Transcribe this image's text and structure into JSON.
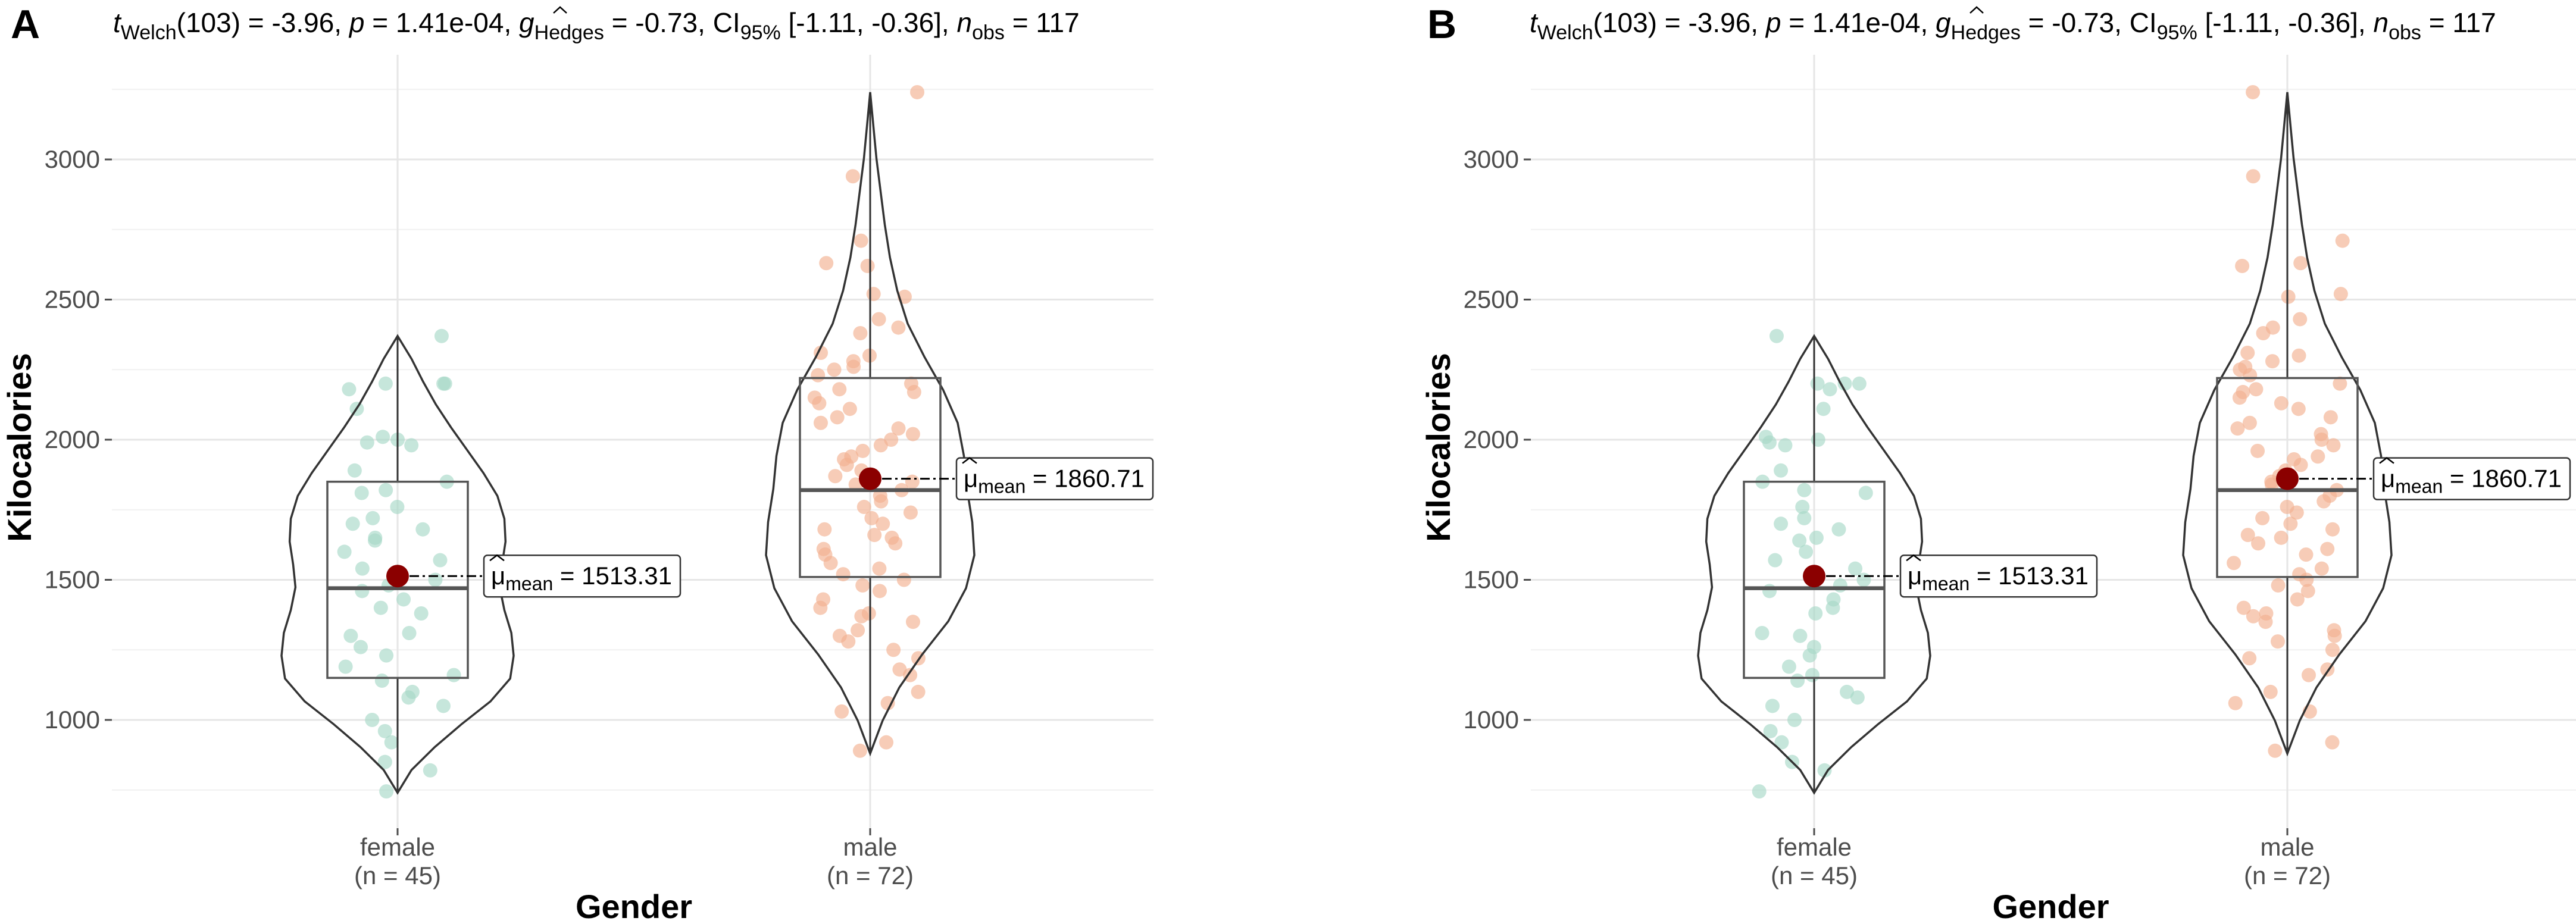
{
  "chart_data": [
    {
      "panel_label": "A",
      "type": "violin",
      "subtitle_stats": {
        "t_label": "t",
        "t_sub": "Welch",
        "df": "(103) = -3.96,",
        "p_label": "p",
        "p_value": "= 1.41e-04,",
        "g_label": "g",
        "g_sub": "Hedges",
        "g_value": "= -0.73,",
        "ci_label": "CI",
        "ci_sub": "95%",
        "ci_value": "[-1.11, -0.36],",
        "n_label": "n",
        "n_sub": "obs",
        "n_value": "= 117"
      },
      "xlabel": "Gender",
      "ylabel": "Kilocalories",
      "ylim": [
        600,
        3300
      ],
      "yticks": [
        1000,
        1500,
        2000,
        2500,
        3000
      ],
      "categories": [
        {
          "name": "female",
          "count_label": "(n = 45)",
          "color": "#a8d8c8",
          "violin": {
            "min": 740,
            "max": 2370
          },
          "box": {
            "q1": 1150,
            "median": 1470,
            "q3": 1850,
            "whisker_low": 740,
            "whisker_high": 2370
          },
          "mean": 1513.31,
          "mean_label_mu": "μ",
          "mean_label_sub": "mean",
          "mean_label_value": "= 1513.31",
          "points": [
            2370,
            2200,
            2180,
            2200,
            2200,
            2110,
            2010,
            2000,
            1980,
            1990,
            1890,
            1850,
            1820,
            1810,
            1760,
            1720,
            1700,
            1680,
            1650,
            1640,
            1600,
            1570,
            1540,
            1500,
            1480,
            1460,
            1430,
            1400,
            1380,
            1310,
            1300,
            1260,
            1230,
            1190,
            1160,
            1140,
            1100,
            1080,
            1050,
            1000,
            960,
            920,
            850,
            820,
            745
          ]
        },
        {
          "name": "male",
          "count_label": "(n = 72)",
          "color": "#f2b090",
          "violin": {
            "min": 880,
            "max": 3240
          },
          "box": {
            "q1": 1510,
            "median": 1820,
            "q3": 2220,
            "whisker_low": 880,
            "whisker_high": 3240
          },
          "mean": 1860.71,
          "mean_label_mu": "μ",
          "mean_label_sub": "mean",
          "mean_label_value": "= 1860.71",
          "points": [
            3240,
            2940,
            2710,
            2630,
            2620,
            2520,
            2510,
            2430,
            2400,
            2380,
            2310,
            2300,
            2280,
            2260,
            2250,
            2230,
            2200,
            2180,
            2170,
            2150,
            2130,
            2110,
            2080,
            2060,
            2040,
            2020,
            2000,
            1980,
            1960,
            1940,
            1930,
            1910,
            1890,
            1870,
            1850,
            1840,
            1820,
            1800,
            1780,
            1760,
            1740,
            1720,
            1700,
            1680,
            1660,
            1650,
            1630,
            1610,
            1590,
            1560,
            1540,
            1520,
            1500,
            1480,
            1460,
            1430,
            1400,
            1380,
            1370,
            1350,
            1320,
            1300,
            1280,
            1250,
            1220,
            1180,
            1160,
            1100,
            1060,
            1030,
            920,
            890
          ]
        }
      ]
    },
    {
      "panel_label": "B",
      "type": "violin",
      "subtitle_stats": {
        "t_label": "t",
        "t_sub": "Welch",
        "df": "(103) = -3.96,",
        "p_label": "p",
        "p_value": "= 1.41e-04,",
        "g_label": "g",
        "g_sub": "Hedges",
        "g_value": "= -0.73,",
        "ci_label": "CI",
        "ci_sub": "95%",
        "ci_value": "[-1.11, -0.36],",
        "n_label": "n",
        "n_sub": "obs",
        "n_value": "= 117"
      },
      "xlabel": "Gender",
      "ylabel": "Kilocalories",
      "ylim": [
        600,
        3300
      ],
      "yticks": [
        1000,
        1500,
        2000,
        2500,
        3000
      ],
      "categories": [
        {
          "name": "female",
          "count_label": "(n = 45)",
          "color": "#a8d8c8",
          "violin": {
            "min": 740,
            "max": 2370
          },
          "box": {
            "q1": 1150,
            "median": 1470,
            "q3": 1850,
            "whisker_low": 740,
            "whisker_high": 2370
          },
          "mean": 1513.31,
          "mean_label_mu": "μ",
          "mean_label_sub": "mean",
          "mean_label_value": "= 1513.31",
          "points": [
            2370,
            2200,
            2180,
            2200,
            2200,
            2110,
            2010,
            2000,
            1980,
            1990,
            1890,
            1850,
            1820,
            1810,
            1760,
            1720,
            1700,
            1680,
            1650,
            1640,
            1600,
            1570,
            1540,
            1500,
            1480,
            1460,
            1430,
            1400,
            1380,
            1310,
            1300,
            1260,
            1230,
            1190,
            1160,
            1140,
            1100,
            1080,
            1050,
            1000,
            960,
            920,
            850,
            820,
            745
          ]
        },
        {
          "name": "male",
          "count_label": "(n = 72)",
          "color": "#f2b090",
          "violin": {
            "min": 880,
            "max": 3240
          },
          "box": {
            "q1": 1510,
            "median": 1820,
            "q3": 2220,
            "whisker_low": 880,
            "whisker_high": 3240
          },
          "mean": 1860.71,
          "mean_label_mu": "μ",
          "mean_label_sub": "mean",
          "mean_label_value": "= 1860.71",
          "points": [
            3240,
            2940,
            2710,
            2630,
            2620,
            2520,
            2510,
            2430,
            2400,
            2380,
            2310,
            2300,
            2280,
            2260,
            2250,
            2230,
            2200,
            2180,
            2170,
            2150,
            2130,
            2110,
            2080,
            2060,
            2040,
            2020,
            2000,
            1980,
            1960,
            1940,
            1930,
            1910,
            1890,
            1870,
            1850,
            1840,
            1820,
            1800,
            1780,
            1760,
            1740,
            1720,
            1700,
            1680,
            1660,
            1650,
            1630,
            1610,
            1590,
            1560,
            1540,
            1520,
            1500,
            1480,
            1460,
            1430,
            1400,
            1380,
            1370,
            1350,
            1320,
            1300,
            1280,
            1250,
            1220,
            1180,
            1160,
            1100,
            1060,
            1030,
            920,
            890
          ]
        }
      ]
    }
  ],
  "colors": {
    "mean_point": "#8b0000",
    "outline": "#333333",
    "grid": "#e6e6e6",
    "axis_text": "#4d4d4d"
  }
}
